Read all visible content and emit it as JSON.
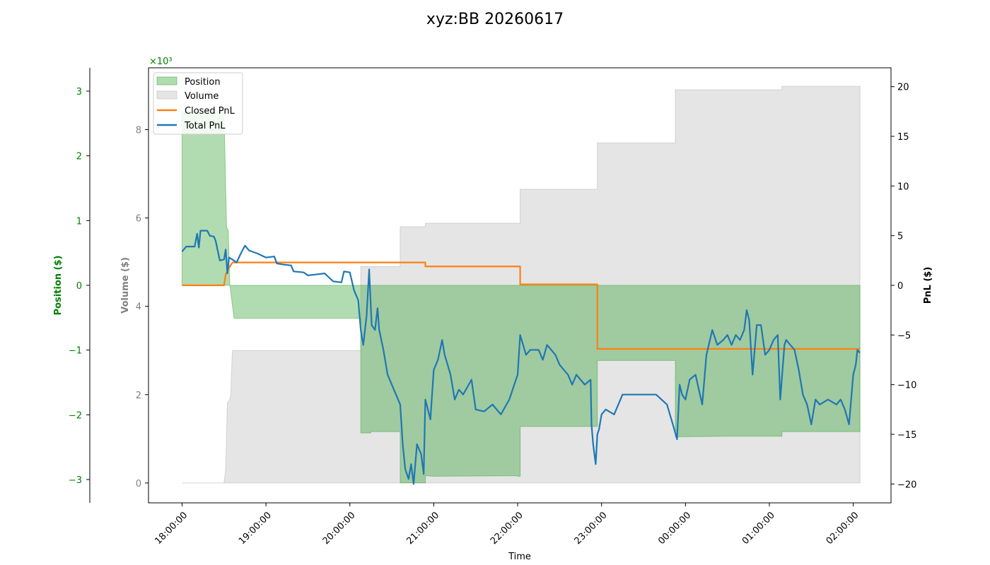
{
  "chart_data": {
    "type": "line",
    "title": "xyz:BB 20260617",
    "xlabel": "Time",
    "x_ticks": [
      "18:00:00",
      "19:00:00",
      "20:00:00",
      "21:00:00",
      "22:00:00",
      "23:00:00",
      "00:00:00",
      "01:00:00",
      "02:00:00"
    ],
    "xlim_hours": [
      -0.4,
      8.45
    ],
    "axes": {
      "position": {
        "label": "Position ($)",
        "color": "#008000",
        "ylim": [
          -3.36,
          3.36
        ],
        "ticks": [
          -3,
          -2,
          -1,
          0,
          1,
          2,
          3
        ],
        "tick_labels": [
          "−3",
          "−2",
          "−1",
          "0",
          "1",
          "2",
          "3"
        ],
        "exponent_label": "×10³"
      },
      "volume": {
        "label": "Volume ($)",
        "color": "#808080",
        "ylim": [
          -0.45,
          9.4
        ],
        "ticks": [
          0,
          2,
          4,
          6,
          8
        ],
        "tick_labels": [
          "0",
          "2",
          "4",
          "6",
          "8"
        ]
      },
      "pnl": {
        "label": "PnL ($)",
        "color": "#000000",
        "ylim": [
          -21.9,
          21.9
        ],
        "ticks": [
          -20,
          -15,
          -10,
          -5,
          0,
          5,
          10,
          15,
          20
        ],
        "tick_labels": [
          "−20",
          "−15",
          "−10",
          "−5",
          "0",
          "5",
          "10",
          "15",
          "20"
        ]
      }
    },
    "legend": {
      "placement": "top-left",
      "entries": [
        "Position",
        "Volume",
        "Closed PnL",
        "Total PnL"
      ]
    },
    "colors": {
      "position": "#2ca02c",
      "volume": "#bdbdbd",
      "closed_pnl": "#ff7f0e",
      "total_pnl": "#1f77b4"
    },
    "series": [
      {
        "name": "Position",
        "axis": "position",
        "kind": "step-area",
        "points": [
          [
            0.0,
            2.68
          ],
          [
            0.5,
            2.68
          ],
          [
            0.53,
            0.9
          ],
          [
            0.55,
            0.85
          ],
          [
            0.57,
            0.0
          ],
          [
            0.62,
            -0.51
          ],
          [
            1.0,
            -0.51
          ],
          [
            2.0,
            -0.51
          ],
          [
            2.13,
            -0.51
          ],
          [
            2.13,
            -2.28
          ],
          [
            2.25,
            -2.28
          ],
          [
            2.25,
            -2.26
          ],
          [
            2.6,
            -2.26
          ],
          [
            2.6,
            -3.05
          ],
          [
            2.9,
            -3.05
          ],
          [
            2.9,
            -2.94
          ],
          [
            3.0,
            -2.95
          ],
          [
            4.0,
            -2.94
          ],
          [
            4.0,
            -2.95
          ],
          [
            4.03,
            -2.95
          ],
          [
            4.03,
            -2.18
          ],
          [
            4.95,
            -2.18
          ],
          [
            4.95,
            -1.16
          ],
          [
            5.88,
            -1.16
          ],
          [
            5.88,
            -2.34
          ],
          [
            6.5,
            -2.33
          ],
          [
            7.15,
            -2.33
          ],
          [
            7.15,
            -2.26
          ],
          [
            8.08,
            -2.26
          ]
        ]
      },
      {
        "name": "Volume",
        "axis": "volume",
        "kind": "step-area",
        "points": [
          [
            0.0,
            0.0
          ],
          [
            0.5,
            0.0
          ],
          [
            0.52,
            0.3
          ],
          [
            0.54,
            1.8
          ],
          [
            0.57,
            1.9
          ],
          [
            0.58,
            2.0
          ],
          [
            0.6,
            3.0
          ],
          [
            1.0,
            3.0
          ],
          [
            2.0,
            3.0
          ],
          [
            2.13,
            3.0
          ],
          [
            2.13,
            4.9
          ],
          [
            2.6,
            4.9
          ],
          [
            2.6,
            5.8
          ],
          [
            2.9,
            5.8
          ],
          [
            2.9,
            5.88
          ],
          [
            4.03,
            5.88
          ],
          [
            4.03,
            6.65
          ],
          [
            4.95,
            6.65
          ],
          [
            4.95,
            7.7
          ],
          [
            5.88,
            7.7
          ],
          [
            5.88,
            8.9
          ],
          [
            7.15,
            8.9
          ],
          [
            7.15,
            8.98
          ],
          [
            8.08,
            8.98
          ]
        ]
      },
      {
        "name": "Closed PnL",
        "axis": "pnl",
        "kind": "step-line",
        "points": [
          [
            0.0,
            0.0
          ],
          [
            0.5,
            0.0
          ],
          [
            0.52,
            1.1
          ],
          [
            0.55,
            1.6
          ],
          [
            0.6,
            2.3
          ],
          [
            2.3,
            2.3
          ],
          [
            2.9,
            2.3
          ],
          [
            2.9,
            1.9
          ],
          [
            4.03,
            1.9
          ],
          [
            4.03,
            0.1
          ],
          [
            4.95,
            0.1
          ],
          [
            4.95,
            -6.4
          ],
          [
            8.08,
            -6.4
          ]
        ]
      },
      {
        "name": "Total PnL",
        "axis": "pnl",
        "kind": "line",
        "points": [
          [
            0.0,
            3.4
          ],
          [
            0.05,
            3.9
          ],
          [
            0.15,
            3.9
          ],
          [
            0.18,
            5.2
          ],
          [
            0.2,
            3.8
          ],
          [
            0.22,
            5.5
          ],
          [
            0.3,
            5.5
          ],
          [
            0.33,
            5.0
          ],
          [
            0.38,
            4.9
          ],
          [
            0.4,
            4.5
          ],
          [
            0.45,
            2.5
          ],
          [
            0.5,
            2.6
          ],
          [
            0.52,
            3.6
          ],
          [
            0.54,
            1.2
          ],
          [
            0.56,
            2.8
          ],
          [
            0.6,
            2.6
          ],
          [
            0.65,
            2.3
          ],
          [
            0.7,
            3.2
          ],
          [
            0.75,
            4.0
          ],
          [
            0.8,
            3.5
          ],
          [
            0.9,
            3.2
          ],
          [
            1.0,
            2.8
          ],
          [
            1.1,
            2.9
          ],
          [
            1.13,
            2.2
          ],
          [
            1.2,
            2.1
          ],
          [
            1.3,
            2.0
          ],
          [
            1.33,
            1.4
          ],
          [
            1.45,
            1.3
          ],
          [
            1.5,
            1.0
          ],
          [
            1.6,
            1.1
          ],
          [
            1.7,
            1.2
          ],
          [
            1.8,
            0.4
          ],
          [
            1.9,
            0.3
          ],
          [
            1.93,
            1.4
          ],
          [
            2.0,
            1.3
          ],
          [
            2.05,
            -0.5
          ],
          [
            2.1,
            -1.5
          ],
          [
            2.13,
            -4.5
          ],
          [
            2.16,
            -6.0
          ],
          [
            2.2,
            -3.0
          ],
          [
            2.23,
            1.6
          ],
          [
            2.26,
            -4.0
          ],
          [
            2.3,
            -4.5
          ],
          [
            2.33,
            -2.3
          ],
          [
            2.35,
            -4.5
          ],
          [
            2.4,
            -6.5
          ],
          [
            2.45,
            -9.0
          ],
          [
            2.5,
            -10.0
          ],
          [
            2.55,
            -11.0
          ],
          [
            2.6,
            -12.0
          ],
          [
            2.63,
            -16.0
          ],
          [
            2.66,
            -18.5
          ],
          [
            2.7,
            -19.5
          ],
          [
            2.73,
            -18.0
          ],
          [
            2.76,
            -20.0
          ],
          [
            2.8,
            -16.0
          ],
          [
            2.85,
            -17.0
          ],
          [
            2.88,
            -19.0
          ],
          [
            2.9,
            -11.5
          ],
          [
            2.93,
            -12.5
          ],
          [
            2.96,
            -13.5
          ],
          [
            3.0,
            -8.5
          ],
          [
            3.05,
            -7.5
          ],
          [
            3.1,
            -5.5
          ],
          [
            3.13,
            -7.0
          ],
          [
            3.2,
            -9.0
          ],
          [
            3.25,
            -11.5
          ],
          [
            3.3,
            -10.5
          ],
          [
            3.35,
            -11.0
          ],
          [
            3.45,
            -9.5
          ],
          [
            3.5,
            -12.5
          ],
          [
            3.6,
            -12.7
          ],
          [
            3.7,
            -12.0
          ],
          [
            3.8,
            -13.0
          ],
          [
            3.9,
            -11.5
          ],
          [
            4.0,
            -9.0
          ],
          [
            4.03,
            -5.0
          ],
          [
            4.1,
            -7.0
          ],
          [
            4.15,
            -6.5
          ],
          [
            4.25,
            -6.5
          ],
          [
            4.3,
            -7.5
          ],
          [
            4.35,
            -6.0
          ],
          [
            4.45,
            -7.0
          ],
          [
            4.5,
            -8.0
          ],
          [
            4.55,
            -8.5
          ],
          [
            4.6,
            -9.0
          ],
          [
            4.65,
            -10.0
          ],
          [
            4.7,
            -9.0
          ],
          [
            4.8,
            -10.0
          ],
          [
            4.87,
            -9.5
          ],
          [
            4.88,
            -14.0
          ],
          [
            4.9,
            -16.0
          ],
          [
            4.93,
            -18.0
          ],
          [
            4.95,
            -15.0
          ],
          [
            4.97,
            -14.5
          ],
          [
            5.0,
            -13.0
          ],
          [
            5.05,
            -12.5
          ],
          [
            5.15,
            -13.0
          ],
          [
            5.25,
            -11.0
          ],
          [
            5.35,
            -11.0
          ],
          [
            5.5,
            -11.0
          ],
          [
            5.65,
            -11.0
          ],
          [
            5.78,
            -12.0
          ],
          [
            5.85,
            -14.0
          ],
          [
            5.9,
            -15.5
          ],
          [
            5.93,
            -10.0
          ],
          [
            5.96,
            -11.0
          ],
          [
            6.0,
            -11.5
          ],
          [
            6.05,
            -9.5
          ],
          [
            6.12,
            -9.0
          ],
          [
            6.2,
            -12.0
          ],
          [
            6.25,
            -7.0
          ],
          [
            6.32,
            -4.5
          ],
          [
            6.38,
            -6.0
          ],
          [
            6.45,
            -5.5
          ],
          [
            6.5,
            -5.0
          ],
          [
            6.55,
            -6.0
          ],
          [
            6.6,
            -5.0
          ],
          [
            6.65,
            -5.5
          ],
          [
            6.7,
            -4.5
          ],
          [
            6.73,
            -2.5
          ],
          [
            6.76,
            -3.5
          ],
          [
            6.8,
            -9.0
          ],
          [
            6.85,
            -4.0
          ],
          [
            6.9,
            -4.0
          ],
          [
            6.95,
            -7.0
          ],
          [
            7.0,
            -6.5
          ],
          [
            7.05,
            -5.5
          ],
          [
            7.1,
            -5.0
          ],
          [
            7.13,
            -11.5
          ],
          [
            7.18,
            -6.0
          ],
          [
            7.2,
            -5.5
          ],
          [
            7.3,
            -6.5
          ],
          [
            7.35,
            -8.5
          ],
          [
            7.4,
            -11.0
          ],
          [
            7.45,
            -12.0
          ],
          [
            7.5,
            -14.0
          ],
          [
            7.55,
            -11.5
          ],
          [
            7.6,
            -12.0
          ],
          [
            7.7,
            -11.5
          ],
          [
            7.8,
            -12.0
          ],
          [
            7.85,
            -11.5
          ],
          [
            7.9,
            -12.5
          ],
          [
            7.95,
            -14.0
          ],
          [
            8.0,
            -9.0
          ],
          [
            8.03,
            -8.0
          ],
          [
            8.05,
            -6.5
          ],
          [
            8.08,
            -6.8
          ]
        ]
      }
    ]
  }
}
